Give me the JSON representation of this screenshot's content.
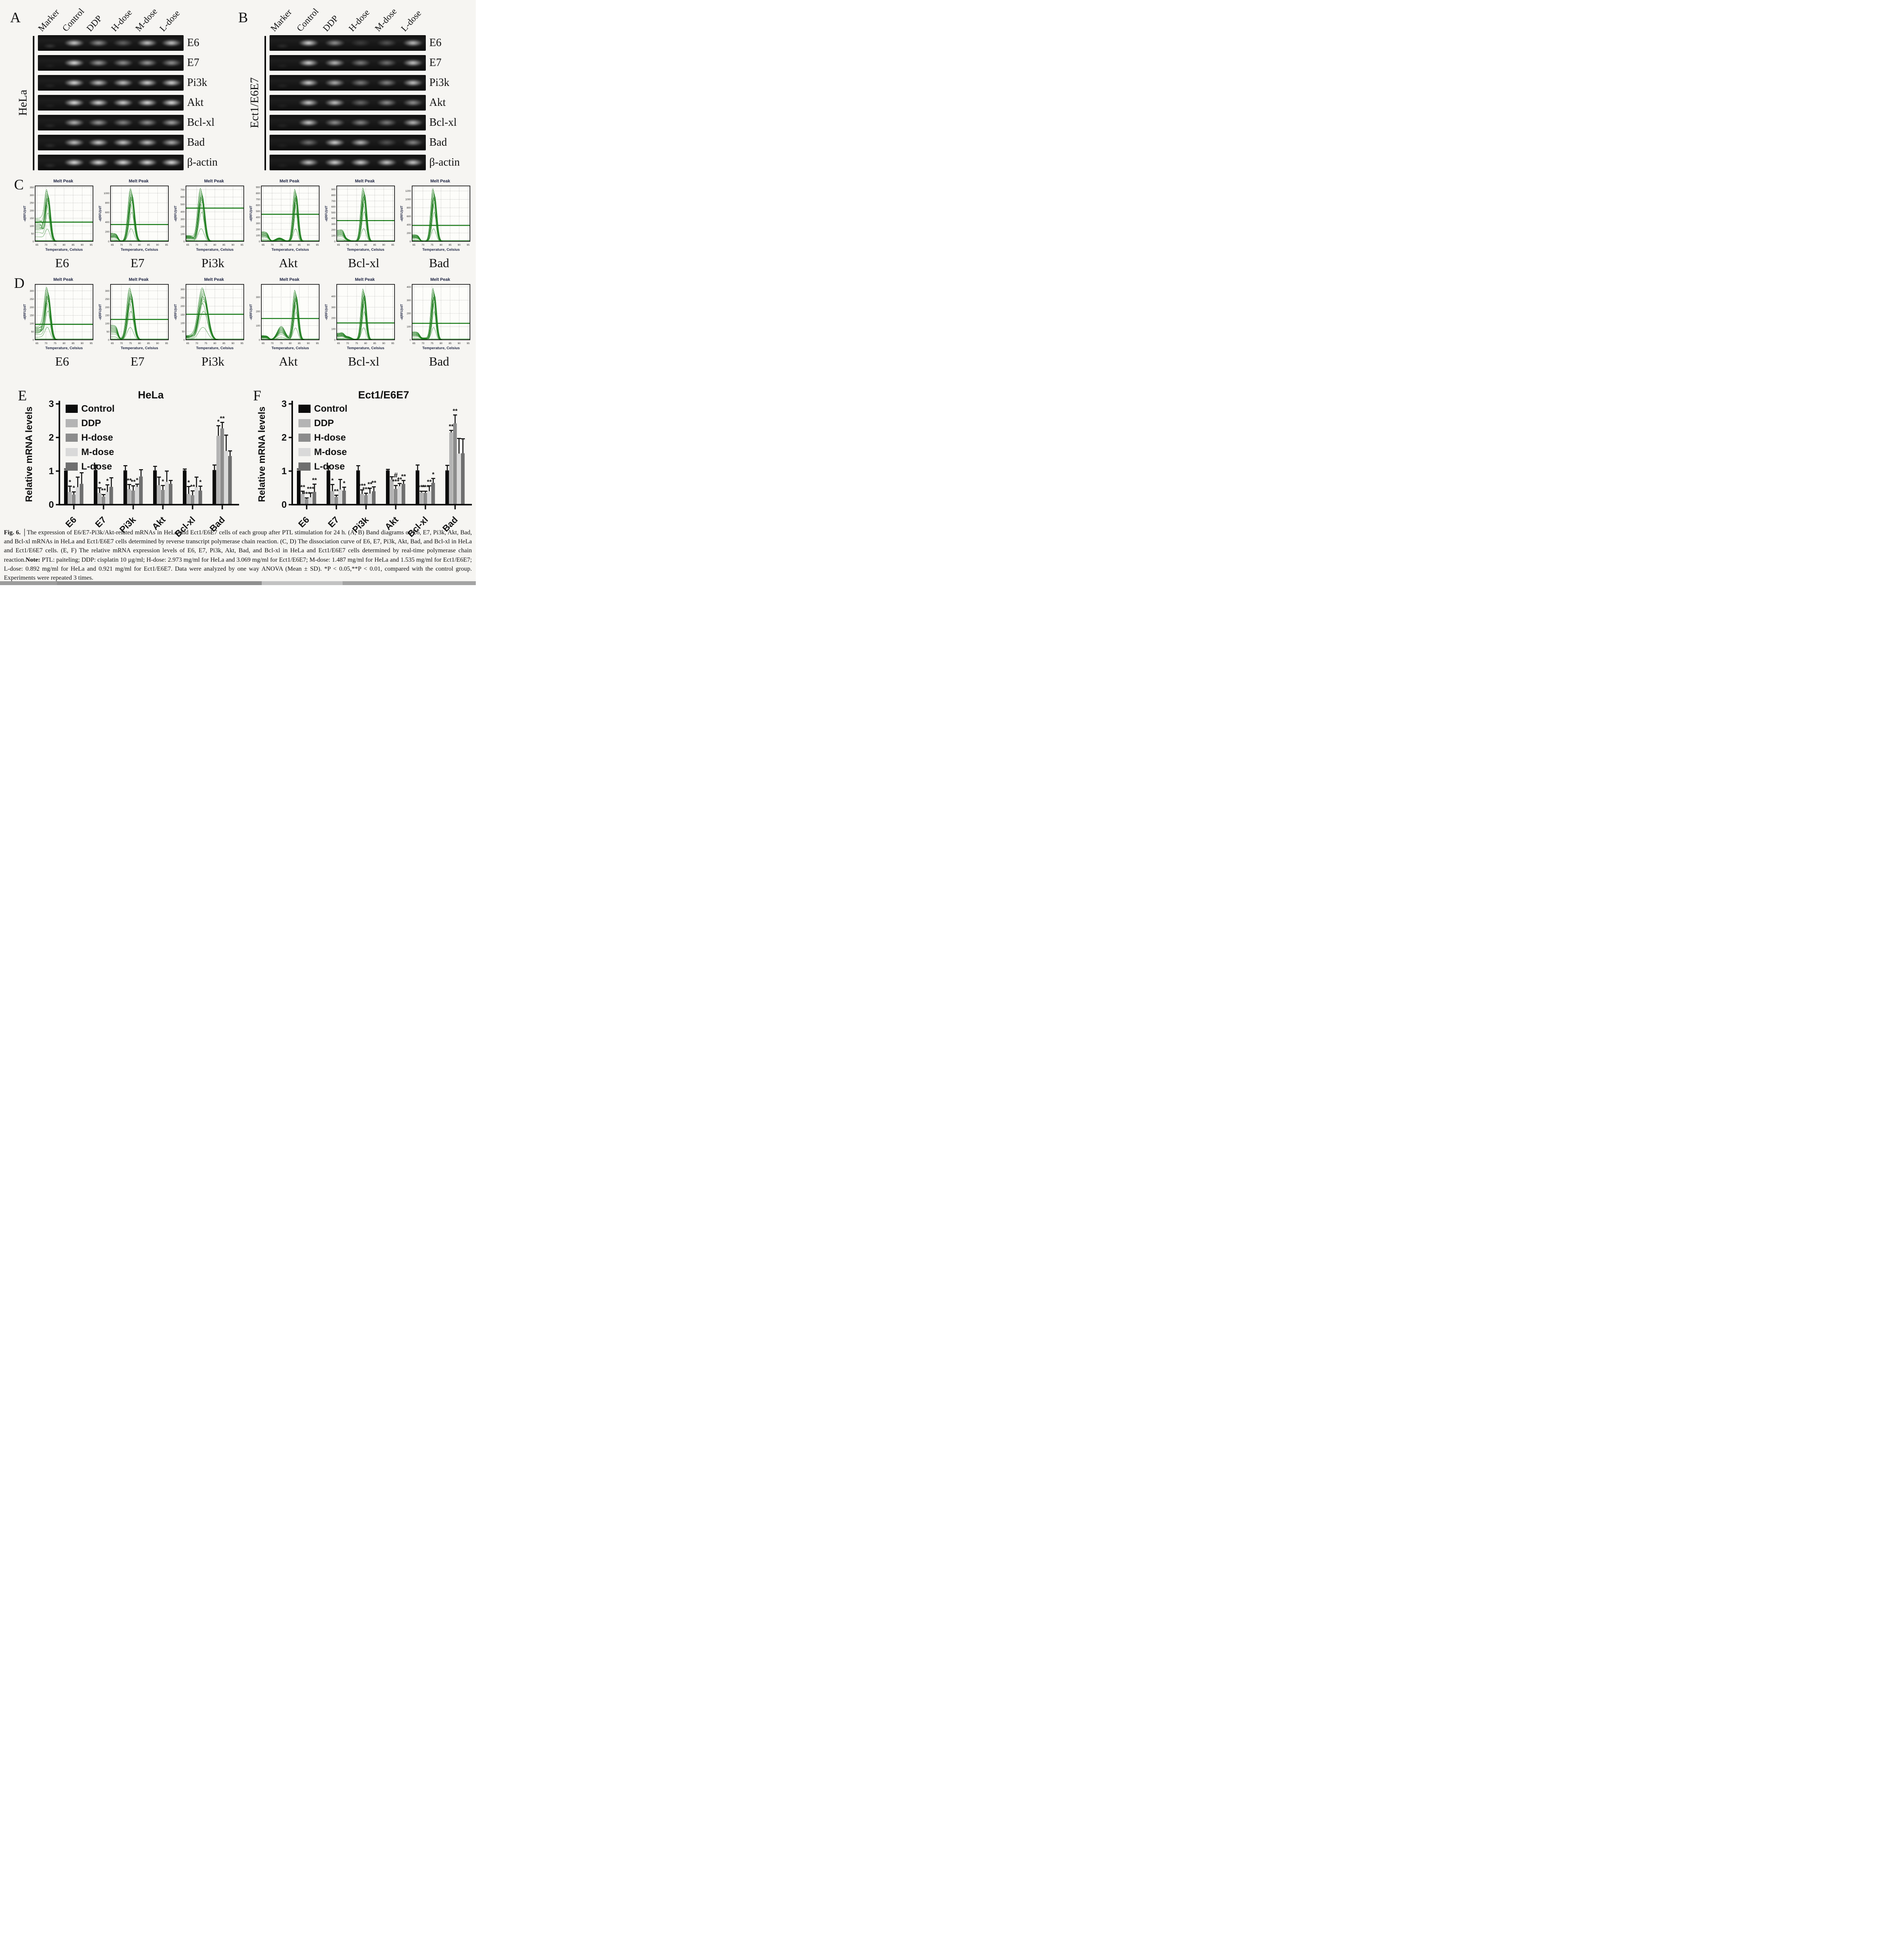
{
  "letters": {
    "A": "A",
    "B": "B",
    "C": "C",
    "D": "D",
    "E": "E",
    "F": "F"
  },
  "gels": {
    "lane_labels": [
      "Marker",
      "Control",
      "DDP",
      "H-dose",
      "M-dose",
      "L-dose"
    ],
    "panelA": {
      "cell_line": "HeLa",
      "rows": [
        {
          "gene": "E6",
          "bands": [
            0.18,
            0.88,
            0.6,
            0.38,
            0.85,
            0.85
          ]
        },
        {
          "gene": "E7",
          "bands": [
            0.06,
            0.97,
            0.65,
            0.6,
            0.65,
            0.6
          ]
        },
        {
          "gene": "Pi3k",
          "bands": [
            0.08,
            0.95,
            0.85,
            0.85,
            0.92,
            0.92
          ]
        },
        {
          "gene": "Akt",
          "bands": [
            0.06,
            0.98,
            0.95,
            0.92,
            0.96,
            0.97
          ]
        },
        {
          "gene": "Bcl-xl",
          "bands": [
            0.1,
            0.78,
            0.65,
            0.55,
            0.62,
            0.7
          ]
        },
        {
          "gene": "Bad",
          "bands": [
            0.12,
            0.85,
            0.9,
            0.88,
            0.85,
            0.75
          ]
        },
        {
          "gene": "β-actin",
          "bands": [
            0.12,
            0.97,
            0.96,
            0.97,
            0.96,
            0.96
          ]
        }
      ]
    },
    "panelB": {
      "cell_line": "Ect1/E6E7",
      "rows": [
        {
          "gene": "E6",
          "bands": [
            0.12,
            0.92,
            0.6,
            0.18,
            0.3,
            0.82
          ]
        },
        {
          "gene": "E7",
          "bands": [
            0.06,
            0.9,
            0.8,
            0.5,
            0.45,
            0.85
          ]
        },
        {
          "gene": "Pi3k",
          "bands": [
            0.08,
            0.9,
            0.75,
            0.5,
            0.55,
            0.85
          ]
        },
        {
          "gene": "Akt",
          "bands": [
            0.06,
            0.88,
            0.85,
            0.4,
            0.6,
            0.6
          ]
        },
        {
          "gene": "Bcl-xl",
          "bands": [
            0.08,
            0.88,
            0.6,
            0.55,
            0.5,
            0.8
          ]
        },
        {
          "gene": "Bad",
          "bands": [
            0.06,
            0.45,
            0.92,
            0.8,
            0.3,
            0.55
          ]
        },
        {
          "gene": "β-actin",
          "bands": [
            0.06,
            0.85,
            0.92,
            0.9,
            0.88,
            0.88
          ]
        }
      ]
    }
  },
  "melt_common": {
    "title": "Melt Peak",
    "xlabel": "Temperature, Celsius",
    "ylabel": "-d(RFU)/dT",
    "curve_color": "#177a17",
    "xticks": [
      65,
      70,
      75,
      80,
      85,
      90,
      95
    ],
    "xlim": [
      64,
      96
    ]
  },
  "chart_data": [
    {
      "type": "line",
      "panel": "C",
      "cell_line": "HeLa",
      "plots": [
        {
          "gene": "E6",
          "ylim": [
            0,
            360
          ],
          "yticks": [
            0,
            50,
            100,
            150,
            200,
            250,
            300,
            350
          ],
          "peak_temp": 70.8,
          "peak_height": 335,
          "threshold": 125,
          "sigma": 1.4,
          "plateau": 150,
          "bump_temp": 0,
          "bump_height": 0
        },
        {
          "gene": "E7",
          "ylim": [
            0,
            1150
          ],
          "yticks": [
            0,
            200,
            400,
            600,
            800,
            1000
          ],
          "peak_temp": 75.5,
          "peak_height": 1100,
          "threshold": 350,
          "sigma": 1.5,
          "plateau": 170,
          "bump_temp": 0,
          "bump_height": 0
        },
        {
          "gene": "Pi3k",
          "ylim": [
            0,
            750
          ],
          "yticks": [
            0,
            100,
            200,
            300,
            400,
            500,
            600,
            700
          ],
          "peak_temp": 72.5,
          "peak_height": 720,
          "threshold": 450,
          "sigma": 1.6,
          "plateau": 80,
          "bump_temp": 0,
          "bump_height": 0
        },
        {
          "gene": "Akt",
          "ylim": [
            0,
            920
          ],
          "yticks": [
            0,
            100,
            200,
            300,
            400,
            500,
            600,
            700,
            800,
            900
          ],
          "peak_temp": 83.0,
          "peak_height": 870,
          "threshold": 450,
          "sigma": 1.2,
          "plateau": 160,
          "bump_temp": 74,
          "bump_height": 60
        },
        {
          "gene": "Bcl-xl",
          "ylim": [
            0,
            960
          ],
          "yticks": [
            0,
            100,
            200,
            300,
            400,
            500,
            600,
            700,
            800,
            900
          ],
          "peak_temp": 79.0,
          "peak_height": 930,
          "threshold": 360,
          "sigma": 1.3,
          "plateau": 190,
          "bump_temp": 69,
          "bump_height": 40
        },
        {
          "gene": "Bad",
          "ylim": [
            0,
            1320
          ],
          "yticks": [
            0,
            200,
            400,
            600,
            800,
            1000,
            1200
          ],
          "peak_temp": 76.0,
          "peak_height": 1260,
          "threshold": 380,
          "sigma": 1.3,
          "plateau": 160,
          "bump_temp": 0,
          "bump_height": 0
        }
      ]
    },
    {
      "type": "line",
      "panel": "D",
      "cell_line": "Ect1/E6E7",
      "plots": [
        {
          "gene": "E6",
          "ylim": [
            0,
            340
          ],
          "yticks": [
            0,
            50,
            100,
            150,
            200,
            250,
            300
          ],
          "peak_temp": 70.8,
          "peak_height": 322,
          "threshold": 95,
          "sigma": 1.5,
          "plateau": 80,
          "bump_temp": 0,
          "bump_height": 0
        },
        {
          "gene": "E7",
          "ylim": [
            0,
            340
          ],
          "yticks": [
            0,
            50,
            100,
            150,
            200,
            250,
            300
          ],
          "peak_temp": 75.0,
          "peak_height": 318,
          "threshold": 125,
          "sigma": 1.7,
          "plateau": 90,
          "bump_temp": 0,
          "bump_height": 0
        },
        {
          "gene": "Pi3k",
          "ylim": [
            0,
            330
          ],
          "yticks": [
            0,
            50,
            100,
            150,
            200,
            250,
            300
          ],
          "peak_temp": 73.5,
          "peak_height": 310,
          "threshold": 152,
          "sigma": 2.4,
          "plateau": 25,
          "bump_temp": 0,
          "bump_height": 0
        },
        {
          "gene": "Akt",
          "ylim": [
            0,
            390
          ],
          "yticks": [
            0,
            100,
            200,
            300
          ],
          "peak_temp": 83.0,
          "peak_height": 350,
          "threshold": 150,
          "sigma": 1.3,
          "plateau": 30,
          "bump_temp": 75,
          "bump_height": 95
        },
        {
          "gene": "Bcl-xl",
          "ylim": [
            0,
            510
          ],
          "yticks": [
            0,
            100,
            200,
            300,
            400
          ],
          "peak_temp": 79.0,
          "peak_height": 470,
          "threshold": 155,
          "sigma": 1.2,
          "plateau": 60,
          "bump_temp": 70,
          "bump_height": 30
        },
        {
          "gene": "Bad",
          "ylim": [
            0,
            420
          ],
          "yticks": [
            0,
            100,
            200,
            300,
            400
          ],
          "peak_temp": 76.0,
          "peak_height": 390,
          "threshold": 125,
          "sigma": 1.2,
          "plateau": 60,
          "bump_temp": 71,
          "bump_height": 15
        }
      ]
    },
    {
      "type": "bar",
      "panel": "E",
      "title": "HeLa",
      "ylabel": "Relative mRNA levels",
      "ylim": [
        0,
        3
      ],
      "yticks": [
        0,
        1,
        2,
        3
      ],
      "categories": [
        "E6",
        "E7",
        "Pi3k",
        "Akt",
        "Bcl-xl",
        "Bad"
      ],
      "series": [
        {
          "name": "Control",
          "color": "#0b0b0b",
          "values": [
            1.02,
            1.03,
            1.02,
            1.02,
            1.02,
            1.03
          ],
          "errors": [
            0.04,
            0.15,
            0.14,
            0.12,
            0.04,
            0.15
          ],
          "sig": [
            "",
            "",
            "",
            "",
            "",
            ""
          ]
        },
        {
          "name": "DDP",
          "color": "#b4b4b4",
          "values": [
            0.38,
            0.35,
            0.46,
            0.58,
            0.32,
            2.05
          ],
          "errors": [
            0.17,
            0.15,
            0.14,
            0.24,
            0.22,
            0.3
          ],
          "sig": [
            "*",
            "*",
            "**",
            "",
            "*",
            "*"
          ]
        },
        {
          "name": "H-dose",
          "color": "#8c8c8c",
          "values": [
            0.3,
            0.24,
            0.42,
            0.44,
            0.28,
            2.27
          ],
          "errors": [
            0.08,
            0.06,
            0.14,
            0.13,
            0.13,
            0.18
          ],
          "sig": [
            "*",
            "**",
            "**",
            "*",
            "**",
            "**"
          ]
        },
        {
          "name": "M-dose",
          "color": "#d9d9d9",
          "values": [
            0.52,
            0.38,
            0.53,
            0.68,
            0.52,
            1.6
          ],
          "errors": [
            0.3,
            0.21,
            0.08,
            0.32,
            0.3,
            0.47
          ],
          "sig": [
            "",
            "*",
            "*",
            "",
            "",
            ""
          ]
        },
        {
          "name": "L-dose",
          "color": "#6f6f6f",
          "values": [
            0.62,
            0.53,
            0.84,
            0.62,
            0.42,
            1.45
          ],
          "errors": [
            0.33,
            0.27,
            0.2,
            0.1,
            0.13,
            0.15
          ],
          "sig": [
            "",
            "",
            "",
            "",
            "*",
            ""
          ]
        }
      ]
    },
    {
      "type": "bar",
      "panel": "F",
      "title": "Ect1/E6E7",
      "ylabel": "Relative mRNA levels",
      "ylim": [
        0,
        3
      ],
      "yticks": [
        0,
        1,
        2,
        3
      ],
      "categories": [
        "E6",
        "E7",
        "Pi3k",
        "Akt",
        "Bcl-xl",
        "Bad"
      ],
      "series": [
        {
          "name": "Control",
          "color": "#0b0b0b",
          "values": [
            1.02,
            1.02,
            1.02,
            1.02,
            1.02,
            1.02
          ],
          "errors": [
            0.04,
            0.13,
            0.14,
            0.03,
            0.16,
            0.15
          ],
          "sig": [
            "",
            "",
            "",
            "",
            "",
            ""
          ]
        },
        {
          "name": "DDP",
          "color": "#b4b4b4",
          "values": [
            0.32,
            0.4,
            0.32,
            0.75,
            0.36,
            2.15
          ],
          "errors": [
            0.08,
            0.2,
            0.12,
            0.08,
            0.04,
            0.06
          ],
          "sig": [
            "**",
            "*",
            "***",
            "",
            "***",
            "**"
          ]
        },
        {
          "name": "H-dose",
          "color": "#8c8c8c",
          "values": [
            0.17,
            0.23,
            0.28,
            0.47,
            0.35,
            2.42
          ],
          "errors": [
            0.03,
            0.05,
            0.06,
            0.1,
            0.05,
            0.25
          ],
          "sig": [
            "***",
            "**",
            "***",
            "#|***",
            "***",
            "**"
          ]
        },
        {
          "name": "M-dose",
          "color": "#d9d9d9",
          "values": [
            0.22,
            0.45,
            0.33,
            0.55,
            0.4,
            1.52
          ],
          "errors": [
            0.13,
            0.3,
            0.16,
            0.08,
            0.16,
            0.45
          ],
          "sig": [
            "***",
            "",
            "**",
            "**",
            "**",
            ""
          ]
        },
        {
          "name": "L-dose",
          "color": "#6f6f6f",
          "values": [
            0.38,
            0.42,
            0.4,
            0.62,
            0.65,
            1.53
          ],
          "errors": [
            0.23,
            0.1,
            0.13,
            0.1,
            0.13,
            0.43
          ],
          "sig": [
            "**",
            "*",
            "**",
            "**",
            "*",
            ""
          ]
        }
      ]
    }
  ],
  "caption_segments": [
    {
      "text": "Fig. 6.",
      "bold": true
    },
    {
      "text": " │The expression of E6/E7-Pi3k/Akt-related mRNAs in HeLa and Ect1/E6E7 cells of each group after PTL stimulation for 24 h. (A, B) Band diagrams of E6, E7, Pi3k, Akt, Bad, and Bcl-xl mRNAs in HeLa and Ect1/E6E7 cells determined by reverse transcript polymerase chain reaction. (C, D) The dissociation curve of E6, E7, Pi3k, Akt, Bad, and Bcl-xl in HeLa and Ect1/E6E7 cells. (E, F) The relative mRNA expression levels of E6, E7, Pi3k, Akt, Bad, and Bcl-xl in HeLa and Ect1/E6E7 cells determined by real-time polymerase chain reaction.",
      "bold": false
    },
    {
      "text": "Note:",
      "bold": true
    },
    {
      "text": " PTL: paiteling; DDP: cisplatin 10 µg/ml; H-dose: 2.973 mg/ml for HeLa and 3.069 mg/ml for Ect1/E6E7; M-dose: 1.487 mg/ml for HeLa and 1.535 mg/ml for Ect1/E6E7; L-dose: 0.892 mg/ml for HeLa and 0.921 mg/ml for Ect1/E6E7. Data were analyzed by one way ANOVA (Mean ± SD). *P < 0.05,**P < 0.01, compared with the control group. Experiments were repeated 3 times.",
      "bold": false
    }
  ]
}
